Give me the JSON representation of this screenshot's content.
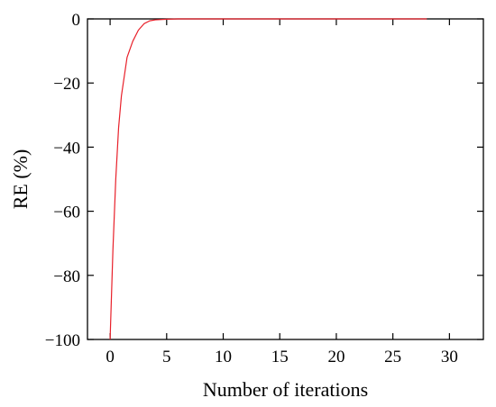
{
  "chart_data": {
    "type": "line",
    "title": "",
    "xlabel": "Number of iterations",
    "ylabel": "RE (%)",
    "xlim": [
      -2,
      33
    ],
    "ylim": [
      -100,
      0
    ],
    "xticks": [
      0,
      5,
      10,
      15,
      20,
      25,
      30
    ],
    "yticks": [
      0,
      -20,
      -40,
      -60,
      -80,
      -100
    ],
    "xtick_labels": [
      "0",
      "5",
      "10",
      "15",
      "20",
      "25",
      "30"
    ],
    "ytick_labels": [
      "0",
      "−20",
      "−40",
      "−60",
      "−80",
      "−100"
    ],
    "grid": false,
    "series": [
      {
        "color": "#e8202a",
        "x": [
          0,
          0.25,
          0.5,
          0.75,
          1,
          1.5,
          2,
          2.5,
          3,
          3.5,
          4,
          5,
          6,
          8,
          10,
          15,
          20,
          25,
          28
        ],
        "y": [
          -100,
          -72,
          -50,
          -34,
          -24,
          -12,
          -7,
          -3.5,
          -1.5,
          -0.6,
          -0.3,
          -0.1,
          0,
          0,
          0,
          0,
          0,
          0,
          0
        ]
      }
    ]
  }
}
